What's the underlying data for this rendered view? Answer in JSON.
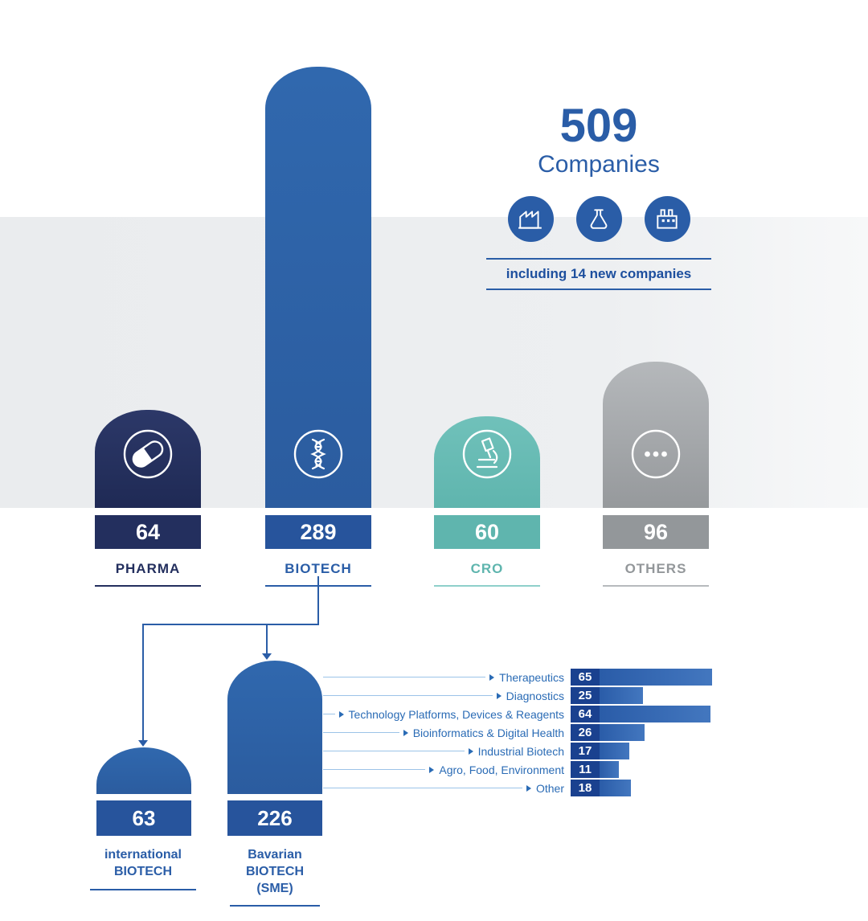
{
  "header": {
    "total": "509",
    "total_label": "Companies",
    "note": "including 14 new companies",
    "icon_names": [
      "factory-roof-icon",
      "flask-icon",
      "factory-chimney-icon"
    ]
  },
  "accent_colors": {
    "pharma": "#232f5e",
    "biotech": "#2a5da7",
    "cro": "#5fb5ae",
    "others": "#93979a",
    "bar_box": "#1a418f",
    "bar_fill": "#2a5ca8"
  },
  "chart_data": [
    {
      "type": "bar",
      "title": "509 Companies",
      "note": "including 14 new companies",
      "categories": [
        "PHARMA",
        "BIOTECH",
        "CRO",
        "OTHERS"
      ],
      "values": [
        64,
        289,
        60,
        96
      ],
      "colors": [
        "#232f5e",
        "#2d62a6",
        "#5fb5ae",
        "#93979a"
      ],
      "icons": [
        "pill-icon",
        "dna-icon",
        "microscope-icon",
        "ellipsis-icon"
      ],
      "total": 509
    },
    {
      "type": "bar",
      "parent": "BIOTECH",
      "categories": [
        "international BIOTECH",
        "Bavarian BIOTECH (SME)"
      ],
      "values": [
        63,
        226
      ],
      "color": "#2d62a6"
    },
    {
      "type": "bar",
      "orientation": "horizontal",
      "parent": "Bavarian BIOTECH (SME)",
      "categories": [
        "Therapeutics",
        "Diagnostics",
        "Technology Platforms, Devices & Reagents",
        "Bioinformatics & Digital Health",
        "Industrial Biotech",
        "Agro, Food, Environment",
        "Other"
      ],
      "values": [
        65,
        25,
        64,
        26,
        17,
        11,
        18
      ],
      "color": "#2a5ca8"
    }
  ]
}
